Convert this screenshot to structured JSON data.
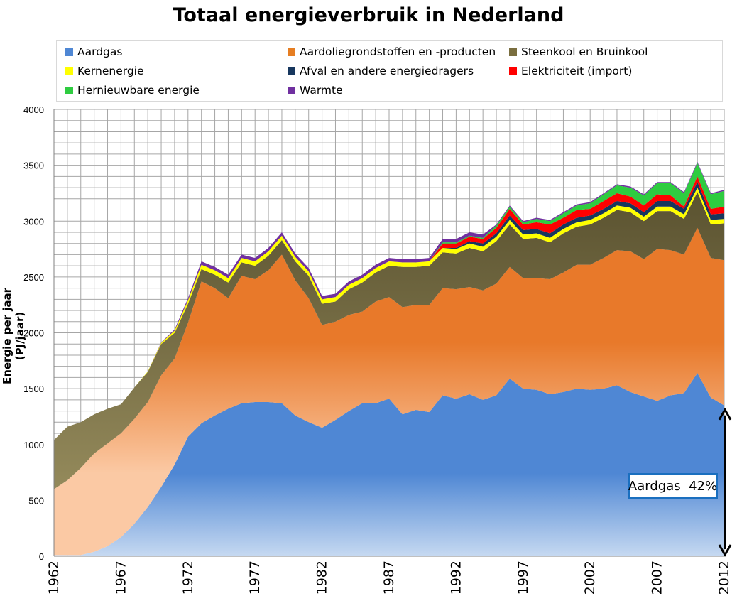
{
  "chart_data": {
    "type": "area",
    "title": "Totaal energieverbruik in Nederland",
    "ylabel": "Energie per jaar (PJ/jaar)",
    "xlabel": "",
    "ylim": [
      0,
      4000
    ],
    "yticks": [
      "0",
      "500",
      "1000",
      "1500",
      "2000",
      "2500",
      "3000",
      "3500",
      "4000"
    ],
    "xtick_labels": [
      "1962",
      "1967",
      "1972",
      "1977",
      "1982",
      "1987",
      "1992",
      "1997",
      "2002",
      "2007",
      "2012"
    ],
    "x": [
      1962,
      1963,
      1964,
      1965,
      1966,
      1967,
      1968,
      1969,
      1970,
      1971,
      1972,
      1973,
      1974,
      1975,
      1976,
      1977,
      1978,
      1979,
      1980,
      1981,
      1982,
      1983,
      1984,
      1985,
      1986,
      1987,
      1988,
      1989,
      1990,
      1991,
      1992,
      1993,
      1994,
      1995,
      1996,
      1997,
      1998,
      1999,
      2000,
      2001,
      2002,
      2003,
      2004,
      2005,
      2006,
      2007,
      2008,
      2009,
      2010,
      2011,
      2012
    ],
    "grid": true,
    "legend_position": "top",
    "series": [
      {
        "name": "Aardgas",
        "color": "#4f87d4",
        "values": [
          10,
          10,
          10,
          40,
          90,
          170,
          290,
          440,
          620,
          820,
          1070,
          1190,
          1260,
          1320,
          1370,
          1380,
          1380,
          1370,
          1260,
          1200,
          1150,
          1220,
          1300,
          1370,
          1370,
          1410,
          1270,
          1310,
          1290,
          1440,
          1410,
          1450,
          1400,
          1440,
          1590,
          1500,
          1490,
          1450,
          1470,
          1500,
          1490,
          1500,
          1530,
          1470,
          1430,
          1390,
          1440,
          1460,
          1640,
          1420,
          1350
        ]
      },
      {
        "name": "Aardoliegrondstoffen en -producten",
        "color": "#e67e22",
        "values": [
          590,
          670,
          780,
          880,
          920,
          930,
          940,
          940,
          1000,
          950,
          1020,
          1270,
          1140,
          990,
          1140,
          1100,
          1180,
          1330,
          1210,
          1110,
          920,
          880,
          860,
          820,
          910,
          910,
          960,
          940,
          960,
          960,
          980,
          960,
          980,
          1000,
          1000,
          990,
          1000,
          1030,
          1070,
          1110,
          1120,
          1170,
          1210,
          1260,
          1230,
          1360,
          1300,
          1240,
          1300,
          1250,
          1300
        ]
      },
      {
        "name": "Steenkool en Bruinkool",
        "color": "#7a6e3f",
        "values": [
          440,
          480,
          410,
          350,
          310,
          260,
          280,
          270,
          280,
          230,
          170,
          110,
          120,
          140,
          120,
          120,
          130,
          130,
          170,
          200,
          190,
          180,
          230,
          260,
          260,
          280,
          360,
          340,
          350,
          320,
          320,
          350,
          350,
          380,
          380,
          350,
          360,
          330,
          350,
          340,
          360,
          360,
          360,
          350,
          340,
          340,
          350,
          320,
          320,
          300,
          330
        ]
      },
      {
        "name": "Kernenergie",
        "color": "#ffff00",
        "values": [
          0,
          0,
          0,
          0,
          0,
          0,
          0,
          5,
          10,
          20,
          30,
          40,
          40,
          40,
          40,
          40,
          40,
          40,
          40,
          40,
          40,
          40,
          40,
          40,
          40,
          40,
          40,
          40,
          40,
          40,
          40,
          40,
          40,
          40,
          40,
          40,
          40,
          40,
          40,
          40,
          40,
          40,
          40,
          40,
          40,
          40,
          40,
          40,
          40,
          40,
          40
        ]
      },
      {
        "name": "Afval en andere energiedragers",
        "color": "#17375e",
        "values": [
          0,
          0,
          0,
          0,
          0,
          0,
          0,
          0,
          0,
          0,
          0,
          0,
          0,
          0,
          0,
          0,
          0,
          0,
          0,
          0,
          0,
          0,
          0,
          0,
          0,
          0,
          0,
          0,
          0,
          0,
          10,
          20,
          30,
          30,
          40,
          40,
          40,
          40,
          40,
          40,
          40,
          40,
          40,
          40,
          40,
          50,
          50,
          50,
          50,
          50,
          50
        ]
      },
      {
        "name": "Elektriciteit (import)",
        "color": "#ff0000",
        "values": [
          0,
          0,
          0,
          0,
          0,
          0,
          0,
          0,
          0,
          0,
          0,
          0,
          0,
          0,
          0,
          0,
          0,
          0,
          0,
          0,
          0,
          0,
          0,
          0,
          0,
          0,
          0,
          0,
          0,
          40,
          40,
          40,
          40,
          50,
          60,
          50,
          60,
          80,
          60,
          70,
          60,
          70,
          70,
          60,
          60,
          60,
          50,
          20,
          50,
          50,
          60
        ]
      },
      {
        "name": "Hernieuwbare energie",
        "color": "#2ecc40",
        "values": [
          0,
          0,
          0,
          0,
          0,
          0,
          0,
          0,
          0,
          0,
          0,
          0,
          0,
          0,
          0,
          0,
          0,
          0,
          0,
          0,
          0,
          0,
          0,
          0,
          0,
          0,
          0,
          0,
          0,
          10,
          10,
          10,
          10,
          20,
          20,
          20,
          30,
          30,
          40,
          40,
          50,
          60,
          70,
          80,
          90,
          100,
          110,
          120,
          120,
          130,
          140
        ]
      },
      {
        "name": "Warmte",
        "color": "#7030a0",
        "values": [
          0,
          0,
          0,
          0,
          0,
          0,
          0,
          0,
          5,
          10,
          20,
          30,
          30,
          30,
          30,
          30,
          30,
          30,
          30,
          30,
          30,
          30,
          30,
          30,
          30,
          30,
          30,
          30,
          30,
          30,
          30,
          30,
          30,
          10,
          10,
          10,
          10,
          10,
          10,
          10,
          10,
          10,
          10,
          10,
          10,
          10,
          10,
          10,
          10,
          10,
          10
        ]
      }
    ]
  },
  "annotation": {
    "label": "Aardgas",
    "value": "42%"
  }
}
